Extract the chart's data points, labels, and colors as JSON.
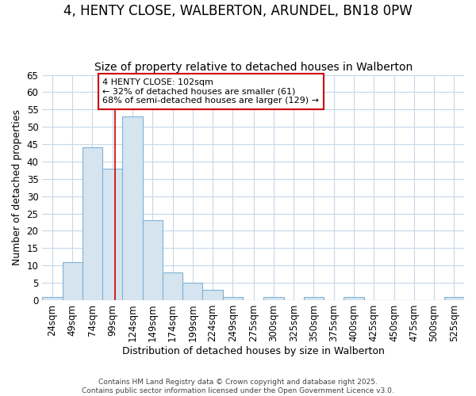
{
  "title_line1": "4, HENTY CLOSE, WALBERTON, ARUNDEL, BN18 0PW",
  "title_line2": "Size of property relative to detached houses in Walberton",
  "xlabel": "Distribution of detached houses by size in Walberton",
  "ylabel": "Number of detached properties",
  "bin_edges": [
    11.5,
    36.5,
    61.5,
    86.5,
    111.5,
    136.5,
    161.5,
    186.5,
    211.5,
    236.5,
    261.5,
    287.5,
    312.5,
    337.5,
    362.5,
    387.5,
    412.5,
    437.5,
    462.5,
    487.5,
    512.5,
    537.5
  ],
  "bin_labels": [
    "24sqm",
    "49sqm",
    "74sqm",
    "99sqm",
    "124sqm",
    "149sqm",
    "174sqm",
    "199sqm",
    "224sqm",
    "249sqm",
    "275sqm",
    "300sqm",
    "325sqm",
    "350sqm",
    "375sqm",
    "400sqm",
    "425sqm",
    "450sqm",
    "475sqm",
    "500sqm",
    "525sqm"
  ],
  "bin_centers": [
    24,
    49,
    74,
    99,
    124,
    149,
    174,
    199,
    224,
    249,
    275,
    300,
    325,
    350,
    375,
    400,
    425,
    450,
    475,
    500,
    525
  ],
  "values": [
    1,
    11,
    44,
    38,
    53,
    23,
    8,
    5,
    3,
    1,
    0,
    1,
    0,
    1,
    0,
    1,
    0,
    0,
    0,
    0,
    1
  ],
  "bar_color": "#d6e4f0",
  "bar_edge_color": "#7fb3d3",
  "property_line_x": 102,
  "property_line_color": "#cc0000",
  "annotation_text": "4 HENTY CLOSE: 102sqm\n← 32% of detached houses are smaller (61)\n68% of semi-detached houses are larger (129) →",
  "annotation_box_color": "#ffffff",
  "annotation_box_edge_color": "#cc0000",
  "ylim": [
    0,
    65
  ],
  "yticks": [
    0,
    5,
    10,
    15,
    20,
    25,
    30,
    35,
    40,
    45,
    50,
    55,
    60,
    65
  ],
  "background_color": "#ffffff",
  "grid_color": "#c8d8e8",
  "footer_line1": "Contains HM Land Registry data © Crown copyright and database right 2025.",
  "footer_line2": "Contains public sector information licensed under the Open Government Licence v3.0.",
  "title_fontsize": 12,
  "subtitle_fontsize": 10,
  "axis_label_fontsize": 9,
  "tick_fontsize": 8.5,
  "annotation_fontsize": 8
}
